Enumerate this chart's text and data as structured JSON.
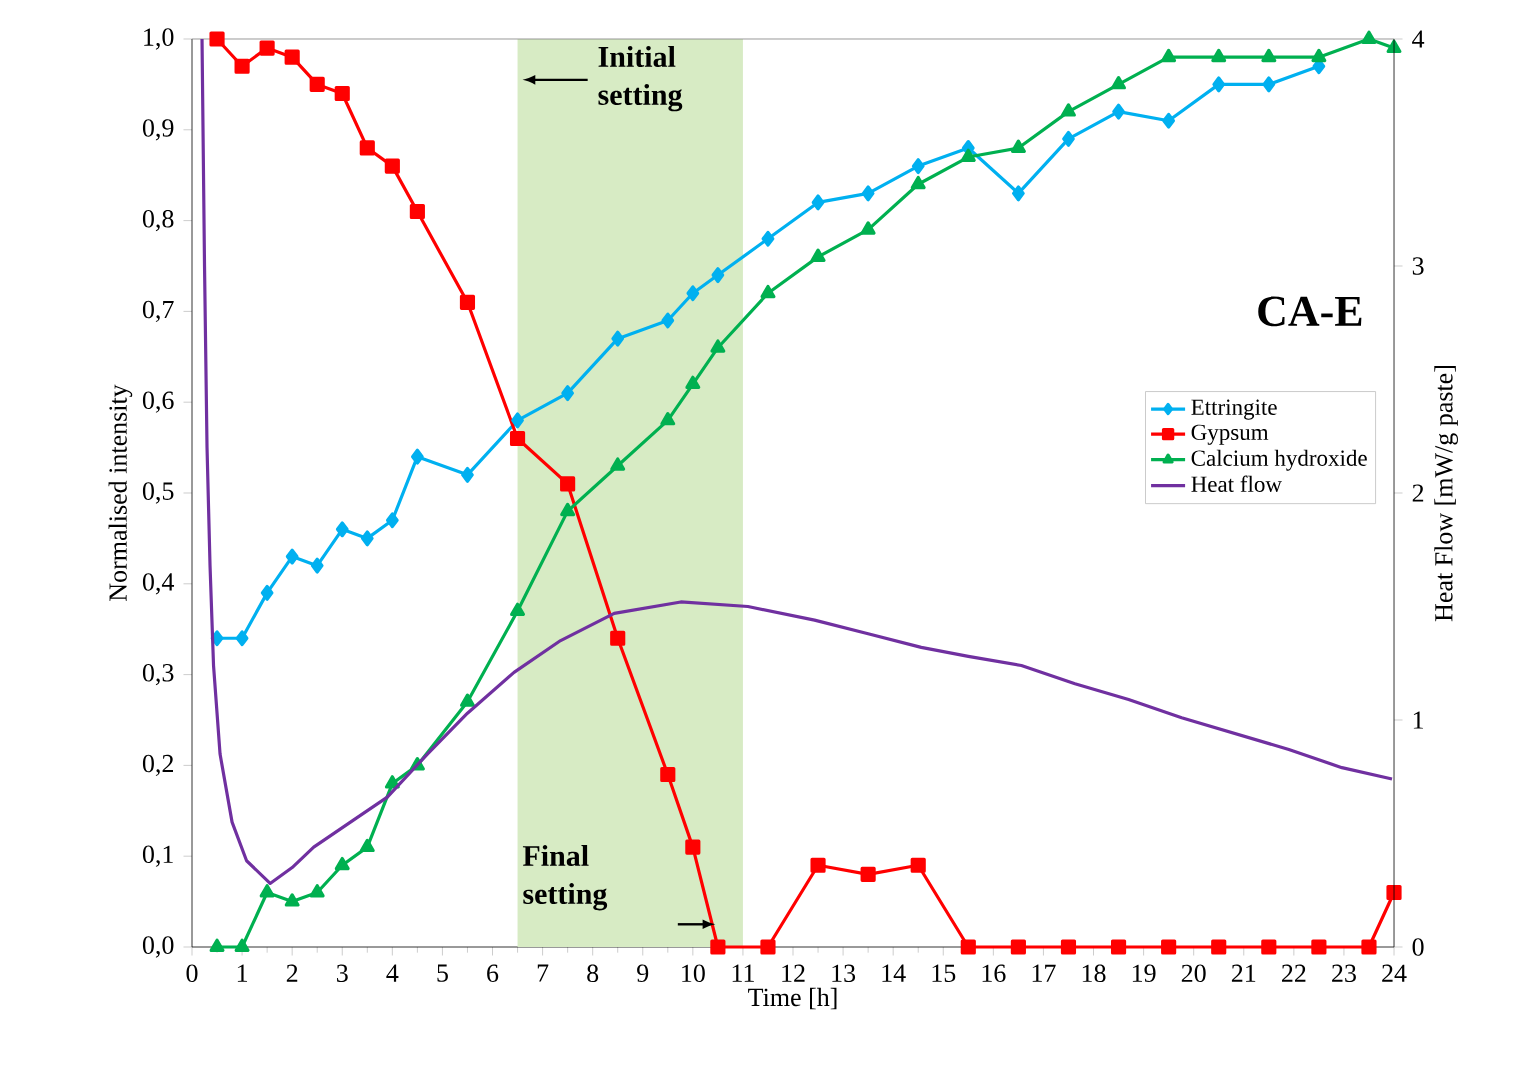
{
  "chart_data": {
    "type": "line",
    "title": "CA-E",
    "xlabel": "Time [h]",
    "ylabel": "Normalised intensity",
    "y2label": "Heat Flow [mW/g paste]",
    "x": [
      0.5,
      1,
      1.5,
      2,
      2.5,
      3,
      3.5,
      4,
      4.5,
      5.5,
      6.5,
      7.5,
      8.5,
      9.5,
      10,
      10.5,
      11.5,
      12.5,
      13.5,
      14.5,
      15.5,
      16.5,
      17.5,
      18.5,
      19.5,
      20.5,
      21.5,
      22.5,
      23.5,
      24
    ],
    "series": [
      {
        "name": "Ettringite",
        "color": "#00b0f0",
        "marker": "diamond",
        "values": [
          0.34,
          0.34,
          0.39,
          0.43,
          0.42,
          0.46,
          0.45,
          0.47,
          0.54,
          0.52,
          0.58,
          0.61,
          0.67,
          0.69,
          0.72,
          0.74,
          0.78,
          0.82,
          0.83,
          0.86,
          0.88,
          0.83,
          0.89,
          0.92,
          0.91,
          0.95,
          0.95,
          0.97,
          null,
          null
        ]
      },
      {
        "name": "Gypsum",
        "color": "#ff0000",
        "marker": "square",
        "values": [
          1.0,
          0.97,
          0.99,
          0.98,
          0.95,
          0.94,
          0.88,
          0.86,
          0.81,
          0.71,
          0.56,
          0.51,
          0.34,
          0.19,
          0.11,
          0,
          0,
          0.09,
          0.08,
          0.09,
          0,
          0,
          0,
          0,
          0,
          0,
          0,
          0,
          0,
          0.06
        ]
      },
      {
        "name": "Calcium hydroxide",
        "color": "#00b050",
        "marker": "triangle",
        "values": [
          0,
          0,
          0.06,
          0.05,
          0.06,
          0.09,
          0.11,
          0.18,
          0.2,
          0.27,
          0.37,
          0.48,
          0.53,
          0.58,
          0.62,
          0.66,
          0.72,
          0.76,
          0.79,
          0.84,
          0.87,
          0.88,
          0.92,
          0.95,
          0.98,
          0.98,
          0.98,
          0.98,
          1.0,
          0.99
        ]
      },
      {
        "name": "Heat flow",
        "color": "#7030a0",
        "marker": "none",
        "axis": "y2",
        "x": [
          0.2,
          0.25,
          0.3,
          0.36,
          0.43,
          0.56,
          0.8,
          1.09,
          1.56,
          2.0,
          2.43,
          3.23,
          3.9,
          4.7,
          5.5,
          6.43,
          7.36,
          8.43,
          9.76,
          11.1,
          12.43,
          13.5,
          14.56,
          15.5,
          16.56,
          17.63,
          18.7,
          19.76,
          20.83,
          21.9,
          22.96,
          23.96
        ],
        "values": [
          4.0,
          3.0,
          2.2,
          1.68,
          1.24,
          0.85,
          0.55,
          0.38,
          0.28,
          0.35,
          0.44,
          0.56,
          0.66,
          0.85,
          1.03,
          1.21,
          1.35,
          1.47,
          1.52,
          1.5,
          1.44,
          1.38,
          1.32,
          1.28,
          1.24,
          1.16,
          1.09,
          1.01,
          0.94,
          0.87,
          0.79,
          0.74
        ]
      }
    ],
    "xlim": [
      0,
      24
    ],
    "ylim": [
      0,
      1
    ],
    "y2lim": [
      0,
      4
    ],
    "xticks": [
      0,
      1,
      2,
      3,
      4,
      5,
      6,
      7,
      8,
      9,
      10,
      11,
      12,
      13,
      14,
      15,
      16,
      17,
      18,
      19,
      20,
      21,
      22,
      23,
      24
    ],
    "yticks": [
      {
        "value": 0,
        "label": "0,0"
      },
      {
        "value": 0.1,
        "label": "0,1"
      },
      {
        "value": 0.2,
        "label": "0,2"
      },
      {
        "value": 0.3,
        "label": "0,3"
      },
      {
        "value": 0.4,
        "label": "0,4"
      },
      {
        "value": 0.5,
        "label": "0,5"
      },
      {
        "value": 0.6,
        "label": "0,6"
      },
      {
        "value": 0.7,
        "label": "0,7"
      },
      {
        "value": 0.8,
        "label": "0,8"
      },
      {
        "value": 0.9,
        "label": "0,9"
      },
      {
        "value": 1,
        "label": "1,0"
      }
    ],
    "y2ticks": [
      0,
      1,
      2,
      3,
      4
    ],
    "bands": [
      {
        "axis": "x",
        "from": 6.5,
        "to": 11,
        "color": "#d7ebc4"
      }
    ],
    "annotations": [
      "Initial setting",
      "Final setting"
    ],
    "legend": "right"
  }
}
